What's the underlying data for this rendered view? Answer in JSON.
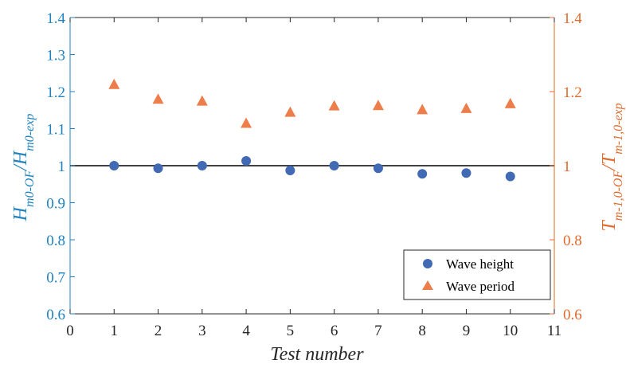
{
  "chart_data": {
    "type": "scatter",
    "xlabel": "Test number",
    "ylabel_left": "H_{m0-OF}/H_{m0-exp}",
    "ylabel_right": "T_{m-1,0-OF}/T_{m-1,0-exp}",
    "xlim": [
      0,
      11
    ],
    "ylim_left": [
      0.6,
      1.4
    ],
    "ylim_right": [
      0.6,
      1.4
    ],
    "x_ticks": [
      "0",
      "1",
      "2",
      "3",
      "4",
      "5",
      "6",
      "7",
      "8",
      "9",
      "10",
      "11"
    ],
    "y_ticks_left": [
      "0.6",
      "0.7",
      "0.8",
      "0.9",
      "1",
      "1.1",
      "1.2",
      "1.3",
      "1.4"
    ],
    "y_ticks_right": [
      "0.6",
      "0.8",
      "1",
      "1.2",
      "1.4"
    ],
    "reference_line_y": 1,
    "legend_position": "bottom-right",
    "series": [
      {
        "name": "Wave height",
        "axis": "left",
        "marker": "circle",
        "color": "#4169b4",
        "x": [
          1,
          2,
          3,
          4,
          5,
          6,
          7,
          8,
          9,
          10
        ],
        "y": [
          1.0,
          0.993,
          1.0,
          1.013,
          0.987,
          1.0,
          0.993,
          0.978,
          0.98,
          0.971
        ]
      },
      {
        "name": "Wave period",
        "axis": "right",
        "marker": "triangle",
        "color": "#ed7d4a",
        "x": [
          1,
          2,
          3,
          4,
          5,
          6,
          7,
          8,
          9,
          10
        ],
        "y": [
          1.22,
          1.18,
          1.175,
          1.115,
          1.145,
          1.162,
          1.163,
          1.152,
          1.155,
          1.168
        ]
      }
    ],
    "colors": {
      "left_axis": "#1f82c0",
      "right_axis": "#e06a2c",
      "frame": "#262626",
      "reference_line": "#262626"
    }
  }
}
